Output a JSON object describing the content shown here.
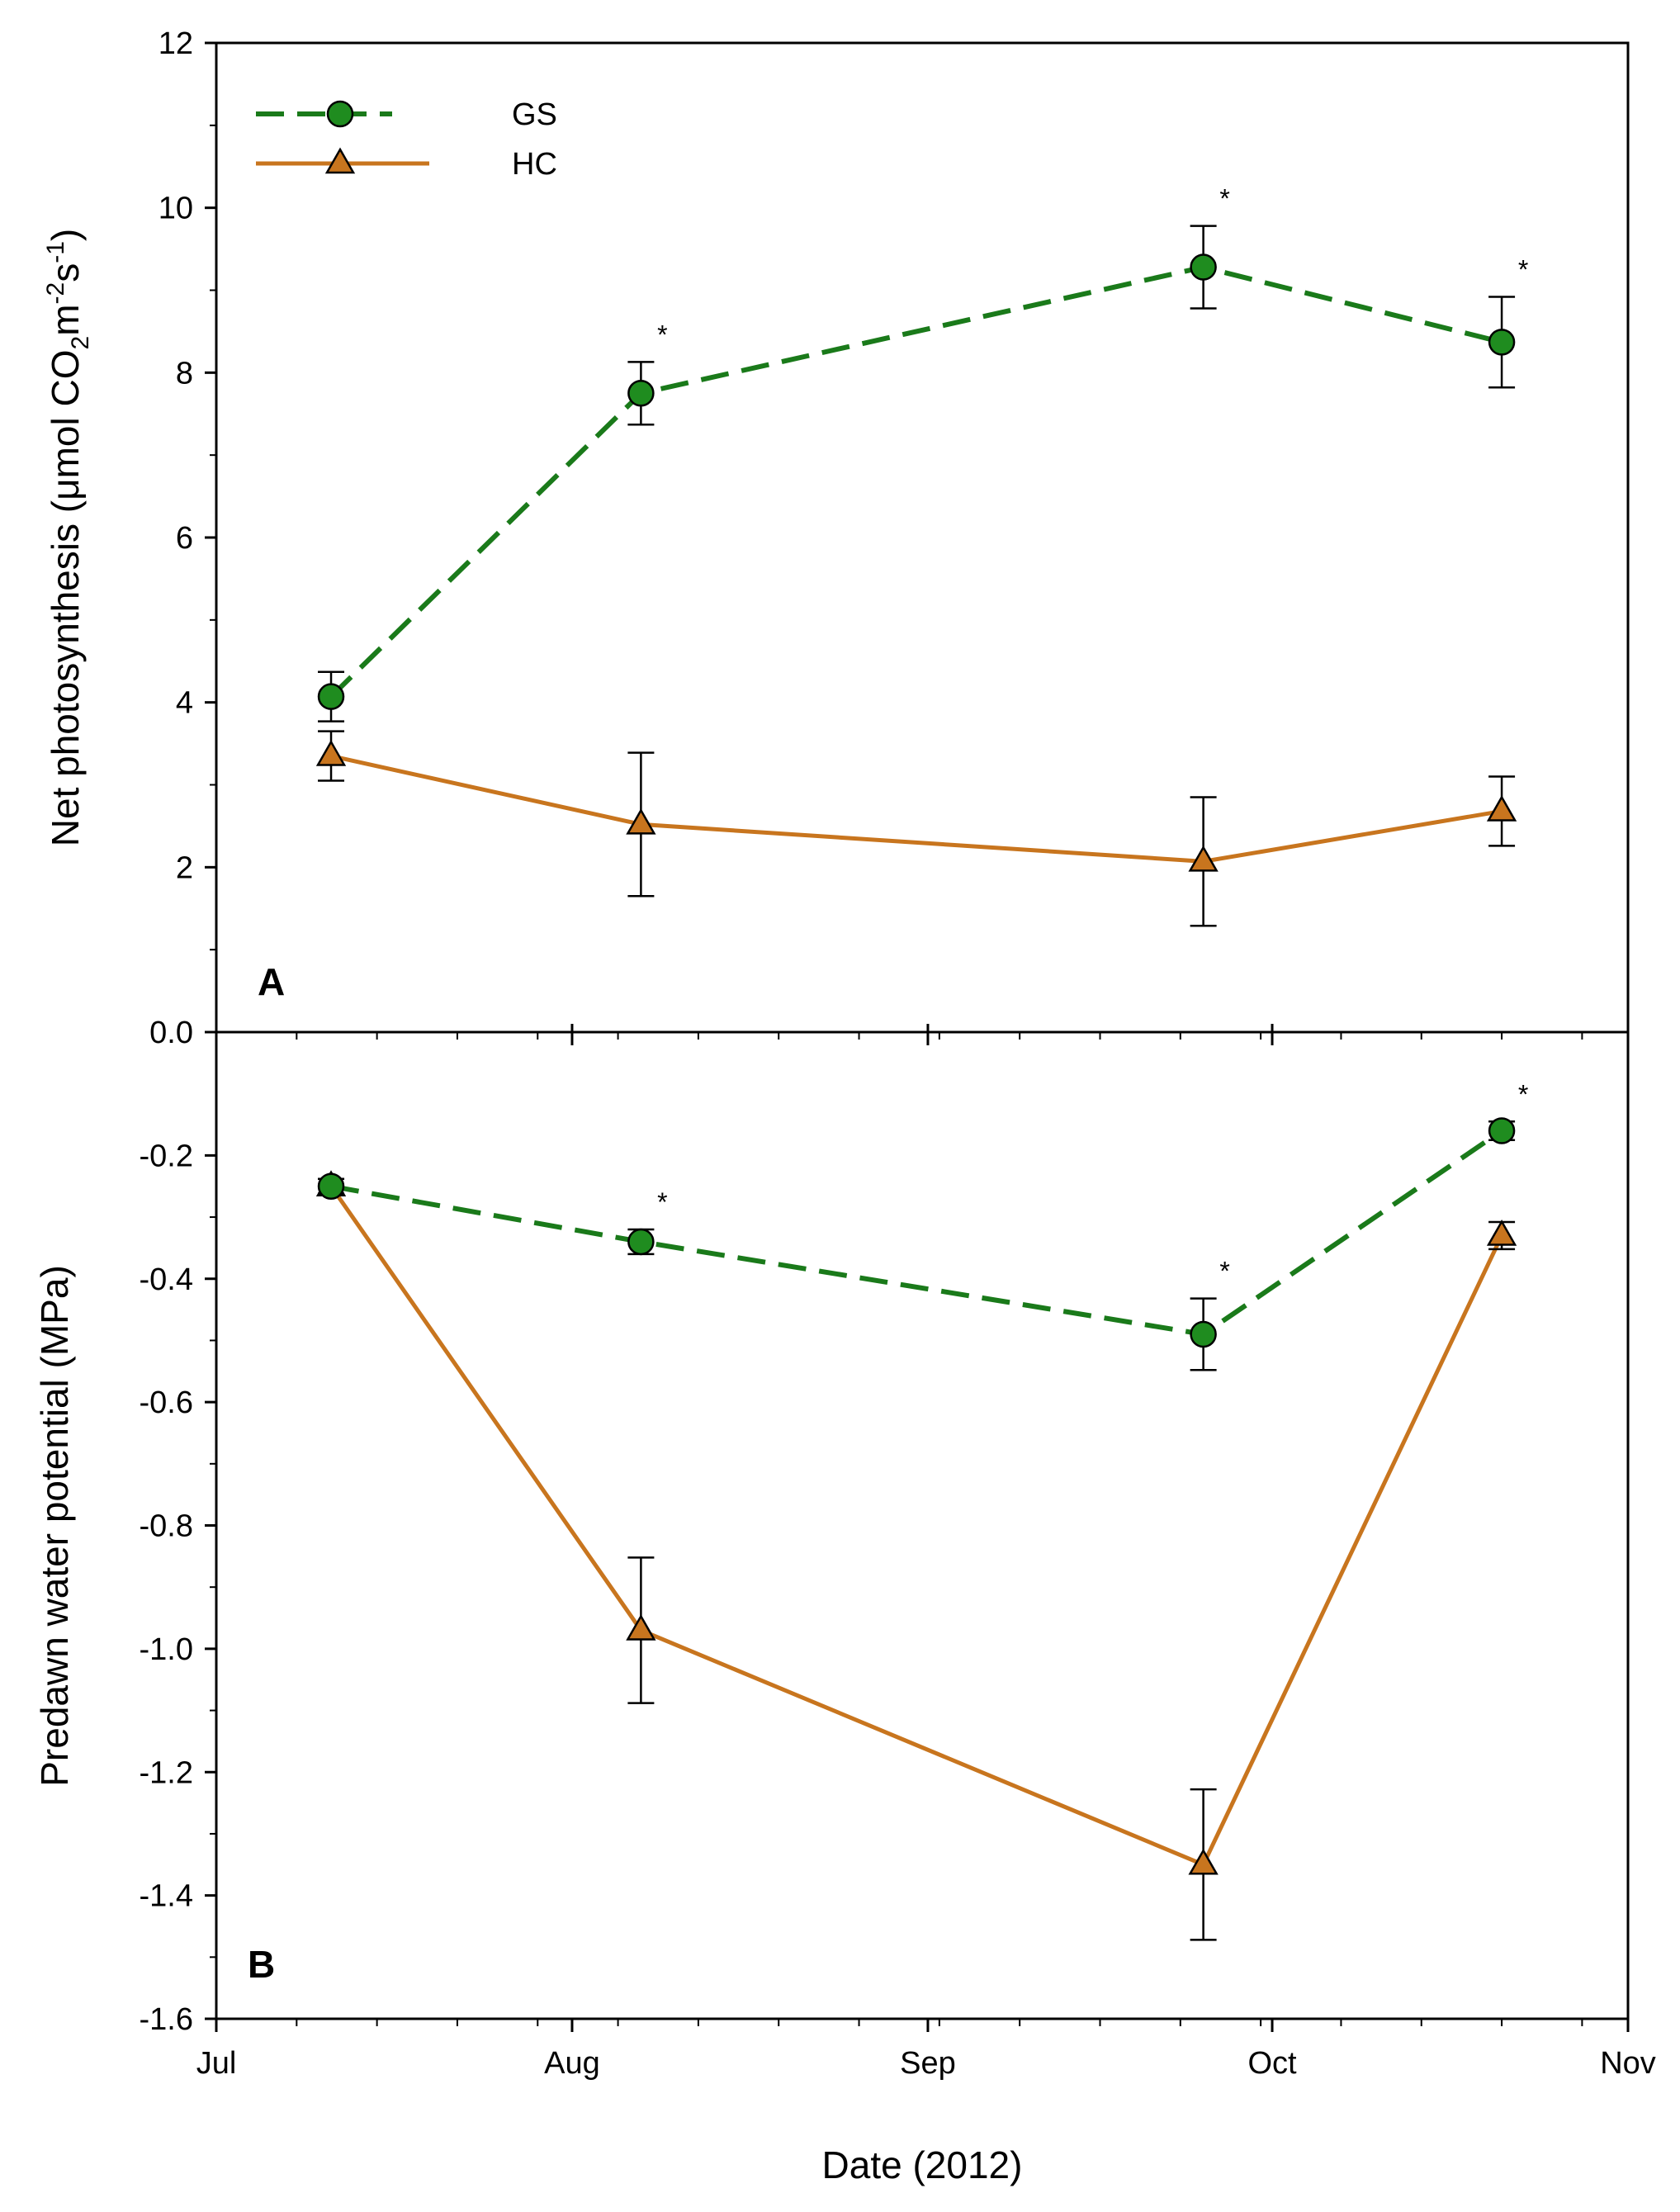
{
  "colors": {
    "GS": "#1a7a1a",
    "GS_marker": "#1f8c1f",
    "HC": "#c8751e",
    "HC_marker": "#c8751e",
    "axis": "#000000"
  },
  "legend": [
    {
      "name": "GS",
      "marker": "circle",
      "line": "dashed"
    },
    {
      "name": "HC",
      "marker": "triangle",
      "line": "solid"
    }
  ],
  "chart_data": [
    {
      "type": "line",
      "panel": "A",
      "xlabel": "",
      "ylabel": "Net photosynthesis (μmol CO₂m⁻²s⁻¹)",
      "ylabel_parts": {
        "prefix": "Net photosynthesis (",
        "mu": "μ",
        "mol": "mol CO",
        "sub2": "2",
        "m": "m",
        "sup1": "-2",
        "s": "s",
        "sup2": "-1",
        "suffix": ")"
      },
      "ylim": [
        0,
        12
      ],
      "yticks": [
        0,
        2,
        4,
        6,
        8,
        10,
        12
      ],
      "ytick_labels": [
        "0.0",
        "2",
        "4",
        "6",
        "8",
        "10",
        "12"
      ],
      "x_ticks": [
        "2012-07-01",
        "2012-08-01",
        "2012-09-01",
        "2012-10-01",
        "2012-11-01"
      ],
      "x_range": [
        "2012-07-01",
        "2012-11-01"
      ],
      "series": [
        {
          "name": "GS",
          "x": [
            "2012-07-11",
            "2012-08-07",
            "2012-09-25",
            "2012-10-21"
          ],
          "y": [
            4.07,
            7.75,
            9.28,
            8.37
          ],
          "err": [
            0.3,
            0.38,
            0.5,
            0.55
          ],
          "significant": [
            false,
            true,
            true,
            true
          ]
        },
        {
          "name": "HC",
          "x": [
            "2012-07-11",
            "2012-08-07",
            "2012-09-25",
            "2012-10-21"
          ],
          "y": [
            3.35,
            2.52,
            2.07,
            2.68
          ],
          "err": [
            0.3,
            0.87,
            0.78,
            0.42
          ],
          "significant": [
            false,
            false,
            false,
            false
          ]
        }
      ]
    },
    {
      "type": "line",
      "panel": "B",
      "xlabel": "Date (2012)",
      "ylabel": "Predawn water potential (MPa)",
      "ylim": [
        -1.6,
        0
      ],
      "yticks": [
        -1.6,
        -1.4,
        -1.2,
        -1.0,
        -0.8,
        -0.6,
        -0.4,
        -0.2
      ],
      "ytick_labels": [
        "-1.6",
        "-1.4",
        "-1.2",
        "-1.0",
        "-0.8",
        "-0.6",
        "-0.4",
        "-0.2"
      ],
      "x_ticks": [
        "2012-07-01",
        "2012-08-01",
        "2012-09-01",
        "2012-10-01",
        "2012-11-01"
      ],
      "x_tick_labels": [
        "Jul",
        "Aug",
        "Sep",
        "Oct",
        "Nov"
      ],
      "x_range": [
        "2012-07-01",
        "2012-11-01"
      ],
      "series": [
        {
          "name": "GS",
          "x": [
            "2012-07-11",
            "2012-08-07",
            "2012-09-25",
            "2012-10-21"
          ],
          "y": [
            -0.25,
            -0.34,
            -0.49,
            -0.16
          ],
          "err": [
            0.012,
            0.02,
            0.058,
            0.015
          ],
          "significant": [
            false,
            true,
            true,
            true
          ]
        },
        {
          "name": "HC",
          "x": [
            "2012-07-11",
            "2012-08-07",
            "2012-09-25",
            "2012-10-21"
          ],
          "y": [
            -0.25,
            -0.97,
            -1.35,
            -0.33
          ],
          "err": [
            0.012,
            0.118,
            0.122,
            0.022
          ],
          "significant": [
            false,
            false,
            false,
            false
          ]
        }
      ]
    }
  ],
  "star_symbol": "*"
}
